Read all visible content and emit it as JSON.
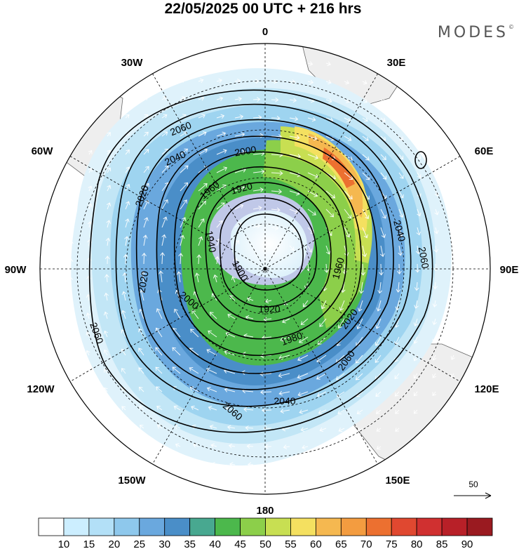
{
  "header": {
    "title": "22/05/2025  00 UTC  + 216 hrs",
    "brand": "MODES",
    "brand_mark": "©"
  },
  "map": {
    "projection": "south-polar-stereographic",
    "longitude_labels": [
      "0",
      "30E",
      "60E",
      "90E",
      "120E",
      "150E",
      "180",
      "150W",
      "120W",
      "90W",
      "60W",
      "30W"
    ],
    "contour_labels": [
      "2060",
      "2060",
      "2060",
      "2060",
      "2060",
      "2040",
      "2040",
      "2040",
      "2020",
      "2020",
      "2020",
      "2000",
      "2000",
      "1980",
      "1960",
      "1960",
      "1940",
      "1920",
      "1920",
      "1900"
    ],
    "land_color": "#eeeeee",
    "vector_reference": {
      "label": "50"
    }
  },
  "colorbar": {
    "levels": [
      "10",
      "15",
      "20",
      "25",
      "30",
      "35",
      "40",
      "45",
      "50",
      "55",
      "60",
      "65",
      "70",
      "75",
      "80",
      "85",
      "90"
    ],
    "colors": [
      "#ffffff",
      "#cceeff",
      "#b3e0f7",
      "#8ec8ec",
      "#6aa8de",
      "#4a8ec8",
      "#48a890",
      "#4cb84c",
      "#8ccf4a",
      "#c8df52",
      "#f4e060",
      "#f5b850",
      "#f39c40",
      "#ec7030",
      "#e04830",
      "#d03030",
      "#b82028",
      "#9a1a20"
    ]
  }
}
